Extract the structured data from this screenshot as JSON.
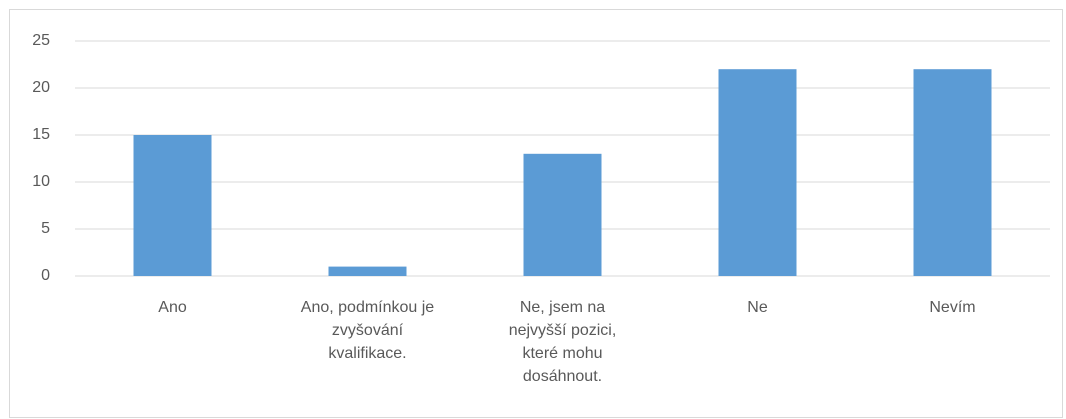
{
  "chart_data": {
    "type": "bar",
    "categories": [
      "Ano",
      "Ano, podmínkou je zvyšování kvalifikace.",
      "Ne, jsem na nejvyšší pozici, které mohu dosáhnout.",
      "Ne",
      "Nevím"
    ],
    "values": [
      15,
      1,
      13,
      22,
      22
    ],
    "color": "#5b9bd5",
    "ylim": [
      0,
      25
    ],
    "yticks": [
      0,
      5,
      10,
      15,
      20,
      25
    ],
    "grid": true
  }
}
